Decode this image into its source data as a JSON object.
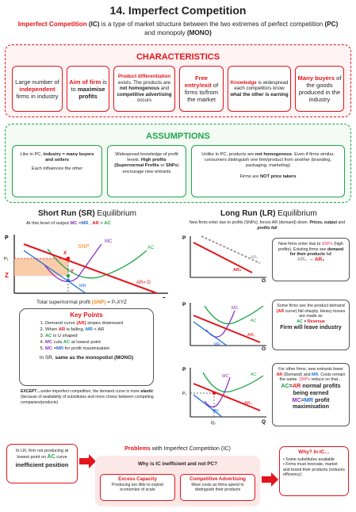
{
  "title": "14. Imperfect Competition",
  "intro": {
    "term": "Imperfect Competition",
    "term_abbr": " (IC)",
    "text1": " is a type of market structure between the two extremes of perfect competition ",
    "pc": "(PC)",
    "text2": " and monopoly ",
    "mono": "(MONO)"
  },
  "characteristics": {
    "heading": "CHARACTERISTICS",
    "cards": [
      {
        "pre": "Large number of ",
        "em": "independent",
        "post": " firms in industry"
      },
      {
        "em": "Aim of firm",
        "mid": " is to ",
        "strong": "maximise profits"
      },
      {
        "em": "Product differentiation",
        "mid": " exists. The products are ",
        "strong": "not homogenous",
        "mid2": " and ",
        "strong2": "competitive advertising",
        "post": " occurs"
      },
      {
        "em": "Free entry/exit",
        "post": " of firms to/from the market"
      },
      {
        "em": "Knowledge",
        "mid": " is widespread each competitors know ",
        "strong": "what the other is earning"
      },
      {
        "em": "Many buyers",
        "post": " of the goods produced in the industry"
      }
    ]
  },
  "assumptions": {
    "heading": "ASSUMPTIONS",
    "card1": {
      "pre": "Like in PC, ",
      "strong": "industry = many buyers and sellers",
      "post": "Each influences the other"
    },
    "card2": {
      "pre": "Widespread knowledge of profit levels. ",
      "strong": "High profits (Supernormal Profits",
      "or": " or ",
      "snp": "SNPs",
      "post": ") encourage new entrants"
    },
    "card3": {
      "pre": "Unlike in PC, products are ",
      "strong": "not homogenous",
      "mid": ". Even if firms similar, consumers distinguish one firm/product from another (branding, packaging, marketing)",
      "post_pre": "Firms are ",
      "post_strong": "NOT price takers"
    }
  },
  "short_run": {
    "heading": "Short Run (SR)",
    "heading_rest": " Equilibrium",
    "subtitle_pre": "At this level of output ",
    "mc": "MC",
    "eq": " =",
    "mr": "MR",
    "comma": " , ",
    "ar": "AR",
    "gt": " > ",
    "ac": "AC",
    "graph": {
      "p_axis": "P",
      "q_axis": "Q",
      "p1": "P₁",
      "z": "Z",
      "x": "X",
      "y": "Y",
      "snp": "SNP",
      "mc": "MC",
      "ac": "AC",
      "mr": "MR",
      "ar_d": "AR= D"
    },
    "total_pre": "Total supernormal profit ",
    "total_snp": "(SNP)",
    "total_eq": " = P₁XYZ"
  },
  "key_points": {
    "heading": "Key Points",
    "items": [
      {
        "pre": "Demand curve ",
        "em": "(AR)",
        "post": " slopes downward"
      },
      {
        "pre": "When ",
        "em": "AR",
        "mid": " is falling, ",
        "em2": "MR",
        "post": " < AR"
      },
      {
        "em": "AC",
        "post": " is U shaped"
      },
      {
        "em": "MC",
        "mid": " cuts ",
        "em2": "AC",
        "post": " at lowest point"
      },
      {
        "em": "MC",
        "mid": " =",
        "em2": "MR",
        "post": " for profit maximisation"
      }
    ],
    "sr_note_pre": "In SR, ",
    "sr_note_strong": "same as the monopolist (MONO)",
    "except_strong": "EXCEPT…",
    "except_text": "under imperfect competition, the demand curve is more ",
    "except_em": "elastic",
    "except_post": " (because of availability of substitutes and more choice between competing companies/products)"
  },
  "long_run": {
    "heading": "Long Run (LR)",
    "heading_rest": " Equilibrium",
    "subtitle": "New firms enter due to profits (SNPs), forces AR (demand) down. ",
    "subtitle_strong": "Prices, output",
    "subtitle_and": " and ",
    "subtitle_em": "profits fall",
    "graph1": {
      "p_axis": "P",
      "q_axis": "Q",
      "ar1": "AR₁",
      "ar2": "AR₂"
    },
    "graph2": {
      "p_axis": "P",
      "q_axis": "Q",
      "mc": "MC",
      "ac": "AC",
      "mr": "MR",
      "ar2": "AR₂"
    },
    "graph3": {
      "p_axis": "P",
      "q_axis": "Q",
      "mc": "MC",
      "ac": "AC",
      "mr": "MR",
      "ar3": "AR₃",
      "p3": "P₃",
      "q3": "Q₃"
    },
    "box1": {
      "l1": "New firms enter due to",
      "snp": "SNPs",
      "l2": " (high profits). Existing firms see ",
      "strong": "demand for their products",
      "post": " fall",
      "ar1": "AR₁",
      "arrow": " → ",
      "ar2": "AR₂"
    },
    "box2": {
      "l1": "Some firms see the product demand ",
      "ar": "(AR",
      "l2": " curve) fall sharply. Heavy losses are made as",
      "ac": "AC",
      "gt": " > ",
      "rev": "Revenue",
      "strong": "Firm will leave industry"
    },
    "box3": {
      "l1": "For other firms, new entrants lower ",
      "ar": "AR",
      "l2": " (Demand) and ",
      "mr": "MR",
      "l3": ". Costs remain the same. ",
      "snps": "SNPs",
      "l4": " reduce so that…",
      "big1": "AC",
      "big_eq": "=",
      "big2": "AR",
      "big_post": " normal profits being earned",
      "mc": "MC",
      "eq": "=",
      "mr2": "MR",
      "profit": " profit maximisation"
    }
  },
  "problems": {
    "left_text1": "In LR, firm not producing at lowest point on ",
    "left_ac": "AC",
    "left_text2": " curve",
    "left_strong": "inefficient position",
    "heading": "Problems",
    "heading_rest": " with Imperfect Competition (IC)",
    "question": "Why is IC inefficient and not PC?",
    "card1_title": "Excess Capacity",
    "card1_text": "Producing too little to exploit economies of scale",
    "card2_title": "Competitive Advertising",
    "card2_text": "More costs as firms spend to distinguish their products",
    "why_title": "Why? In IC…",
    "why_items": [
      "Some substitutes available",
      "Firms must innovate, market and brand their products (reduces efficiency)"
    ]
  }
}
